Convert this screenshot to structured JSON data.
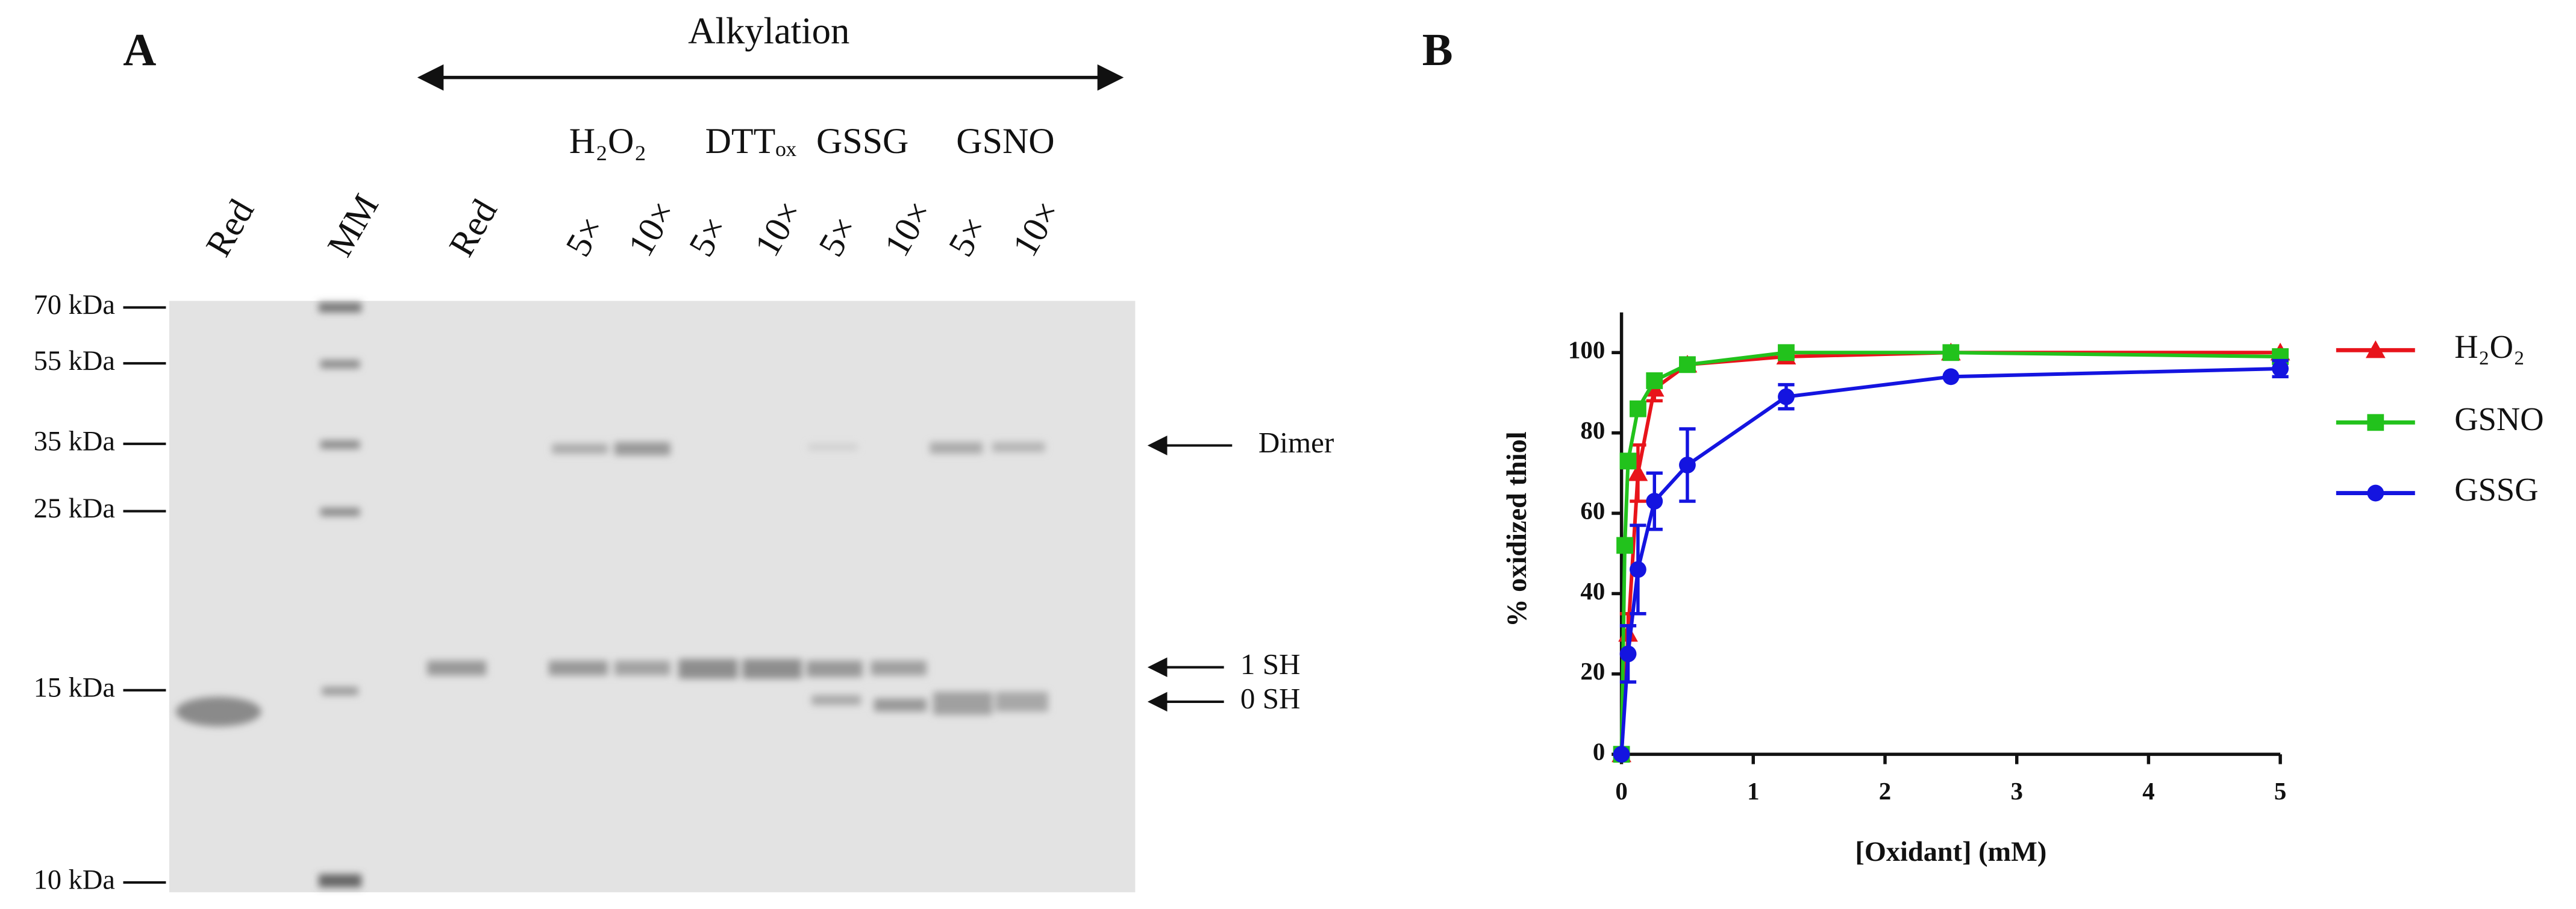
{
  "panel_a": {
    "label": "A",
    "header": "Alkylation",
    "groups": [
      "H₂O₂",
      "DTTₒₓ",
      "GSSG",
      "GSNO"
    ],
    "lanes": [
      "Red",
      "MM",
      "Red",
      "5×",
      "10×",
      "5×",
      "10×",
      "5×",
      "10×",
      "5×",
      "10×"
    ],
    "markers": [
      "70 kDa",
      "55 kDa",
      "35 kDa",
      "25 kDa",
      "15 kDa",
      "10 kDa"
    ],
    "annotations": [
      "Dimer",
      "1 SH",
      "0 SH"
    ]
  },
  "chart_data": {
    "type": "line",
    "panel_label": "B",
    "xlabel": "[Oxidant] (mM)",
    "ylabel": "% oxidized thiol",
    "xlim": [
      0,
      5
    ],
    "xticks": [
      0,
      1,
      2,
      3,
      4,
      5
    ],
    "ylim": [
      0,
      110
    ],
    "yticks": [
      0,
      20,
      40,
      60,
      80,
      100
    ],
    "legend": "right",
    "series": [
      {
        "name": "H₂O₂",
        "color": "#e8141b",
        "marker": "triangle",
        "x": [
          0,
          0.05,
          0.125,
          0.25,
          0.5,
          1.25,
          2.5,
          5
        ],
        "values": [
          0,
          30,
          70,
          91,
          97,
          99,
          100,
          100
        ],
        "errors": [
          null,
          5,
          7,
          3,
          null,
          null,
          null,
          null
        ]
      },
      {
        "name": "GSNO",
        "color": "#22c21c",
        "marker": "square",
        "x": [
          0,
          0.025,
          0.05,
          0.125,
          0.25,
          0.5,
          1.25,
          2.5,
          5
        ],
        "values": [
          0,
          52,
          73,
          86,
          93,
          97,
          100,
          100,
          99
        ],
        "errors": [
          null,
          null,
          null,
          null,
          null,
          null,
          null,
          null,
          null
        ]
      },
      {
        "name": "GSSG",
        "color": "#1414e0",
        "marker": "circle",
        "x": [
          0,
          0.05,
          0.125,
          0.25,
          0.5,
          1.25,
          2.5,
          5
        ],
        "values": [
          0,
          25,
          46,
          63,
          72,
          89,
          94,
          96
        ],
        "errors": [
          null,
          7,
          11,
          7,
          9,
          3,
          null,
          2
        ]
      }
    ]
  }
}
